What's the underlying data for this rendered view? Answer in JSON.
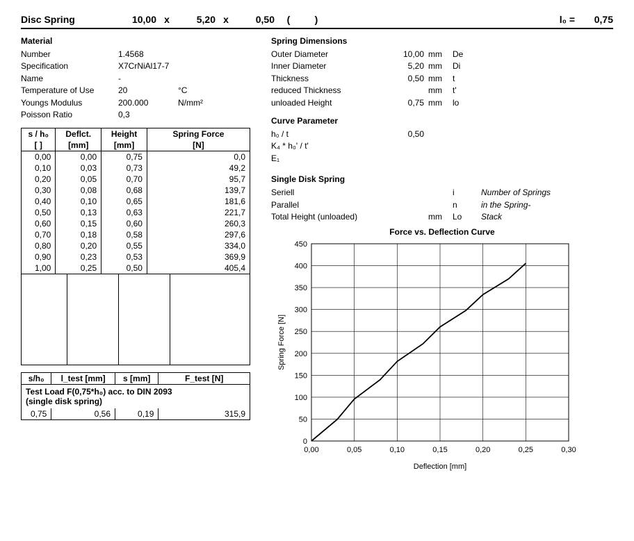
{
  "header": {
    "title": "Disc Spring",
    "d1": "10,00",
    "x1": "x",
    "d2": "5,20",
    "x2": "x",
    "d3": "0,50",
    "lp": "(",
    "rp": ")",
    "lo_label": "l₀ =",
    "lo_val": "0,75"
  },
  "material": {
    "title": "Material",
    "rows": [
      {
        "lbl": "Number",
        "val": "1.4568",
        "unit": ""
      },
      {
        "lbl": "Specification",
        "val": "X7CrNiAl17-7",
        "unit": ""
      },
      {
        "lbl": "Name",
        "val": "-",
        "unit": ""
      },
      {
        "lbl": "Temperature of Use",
        "val": "20",
        "unit": "°C"
      },
      {
        "lbl": "Youngs Modulus",
        "val": "200.000",
        "unit": "N/mm²"
      },
      {
        "lbl": "Poisson Ratio",
        "val": "0,3",
        "unit": ""
      }
    ]
  },
  "dimensions": {
    "title": "Spring Dimensions",
    "rows": [
      {
        "lbl": "Outer Diameter",
        "val": "10,00",
        "unit": "mm",
        "sym": "De"
      },
      {
        "lbl": "Inner Diameter",
        "val": "5,20",
        "unit": "mm",
        "sym": "Di"
      },
      {
        "lbl": "Thickness",
        "val": "0,50",
        "unit": "mm",
        "sym": "t"
      },
      {
        "lbl": "reduced Thickness",
        "val": "",
        "unit": "mm",
        "sym": "t'"
      },
      {
        "lbl": "unloaded Height",
        "val": "0,75",
        "unit": "mm",
        "sym": "lo"
      }
    ]
  },
  "curve_param": {
    "title": "Curve Parameter",
    "rows": [
      {
        "lbl": "h₀ / t",
        "val": "0,50"
      },
      {
        "lbl": "K₄ * h₀' / t'",
        "val": ""
      },
      {
        "lbl": "E₁",
        "val": ""
      }
    ]
  },
  "single_disk": {
    "title": "Single Disk Spring",
    "rows": [
      {
        "lbl": "Seriell",
        "val": "",
        "unit": "",
        "sym": "i",
        "note": "Number of Springs"
      },
      {
        "lbl": "Parallel",
        "val": "",
        "unit": "",
        "sym": "n",
        "note": "in the Spring-"
      },
      {
        "lbl": "Total Height (unloaded)",
        "val": "",
        "unit": "mm",
        "sym": "Lo",
        "note": "Stack"
      }
    ]
  },
  "table": {
    "headers1": [
      "s / h₀",
      "Deflct.",
      "Height",
      "Spring Force"
    ],
    "headers2": [
      "[ ]",
      "[mm]",
      "[mm]",
      "[N]"
    ],
    "rows": [
      [
        "0,00",
        "0,00",
        "0,75",
        "0,0"
      ],
      [
        "0,10",
        "0,03",
        "0,73",
        "49,2"
      ],
      [
        "0,20",
        "0,05",
        "0,70",
        "95,7"
      ],
      [
        "0,30",
        "0,08",
        "0,68",
        "139,7"
      ],
      [
        "0,40",
        "0,10",
        "0,65",
        "181,6"
      ],
      [
        "0,50",
        "0,13",
        "0,63",
        "221,7"
      ],
      [
        "0,60",
        "0,15",
        "0,60",
        "260,3"
      ],
      [
        "0,70",
        "0,18",
        "0,58",
        "297,6"
      ],
      [
        "0,80",
        "0,20",
        "0,55",
        "334,0"
      ],
      [
        "0,90",
        "0,23",
        "0,53",
        "369,9"
      ],
      [
        "1,00",
        "0,25",
        "0,50",
        "405,4"
      ]
    ]
  },
  "test": {
    "caption1": "Test Load F(0,75*h₀) acc. to DIN 2093",
    "caption2": "(single disk spring)",
    "headers": [
      "s/h₀",
      "l_test [mm]",
      "s [mm]",
      "F_test [N]"
    ],
    "row": [
      "0,75",
      "0,56",
      "0,19",
      "315,9"
    ]
  },
  "chart": {
    "title": "Force vs. Deflection Curve",
    "xlabel": "Deflection [mm]",
    "ylabel": "Spring Force [N]",
    "xlim": [
      0,
      0.3
    ],
    "xtick_step": 0.05,
    "xtick_labels": [
      "0,00",
      "0,05",
      "0,10",
      "0,15",
      "0,20",
      "0,25",
      "0,30"
    ],
    "ylim": [
      0,
      450
    ],
    "ytick_step": 50,
    "ytick_labels": [
      "0",
      "50",
      "100",
      "150",
      "200",
      "250",
      "300",
      "350",
      "400",
      "450"
    ],
    "grid_color": "#000000",
    "line_color": "#000000",
    "line_width": 1.8,
    "background_color": "#ffffff",
    "tick_fontsize": 11,
    "label_fontsize": 11,
    "points_x": [
      0.0,
      0.03,
      0.05,
      0.08,
      0.1,
      0.13,
      0.15,
      0.18,
      0.2,
      0.23,
      0.25
    ],
    "points_y": [
      0.0,
      49.2,
      95.7,
      139.7,
      181.6,
      221.7,
      260.3,
      297.6,
      334.0,
      369.9,
      405.4
    ]
  }
}
